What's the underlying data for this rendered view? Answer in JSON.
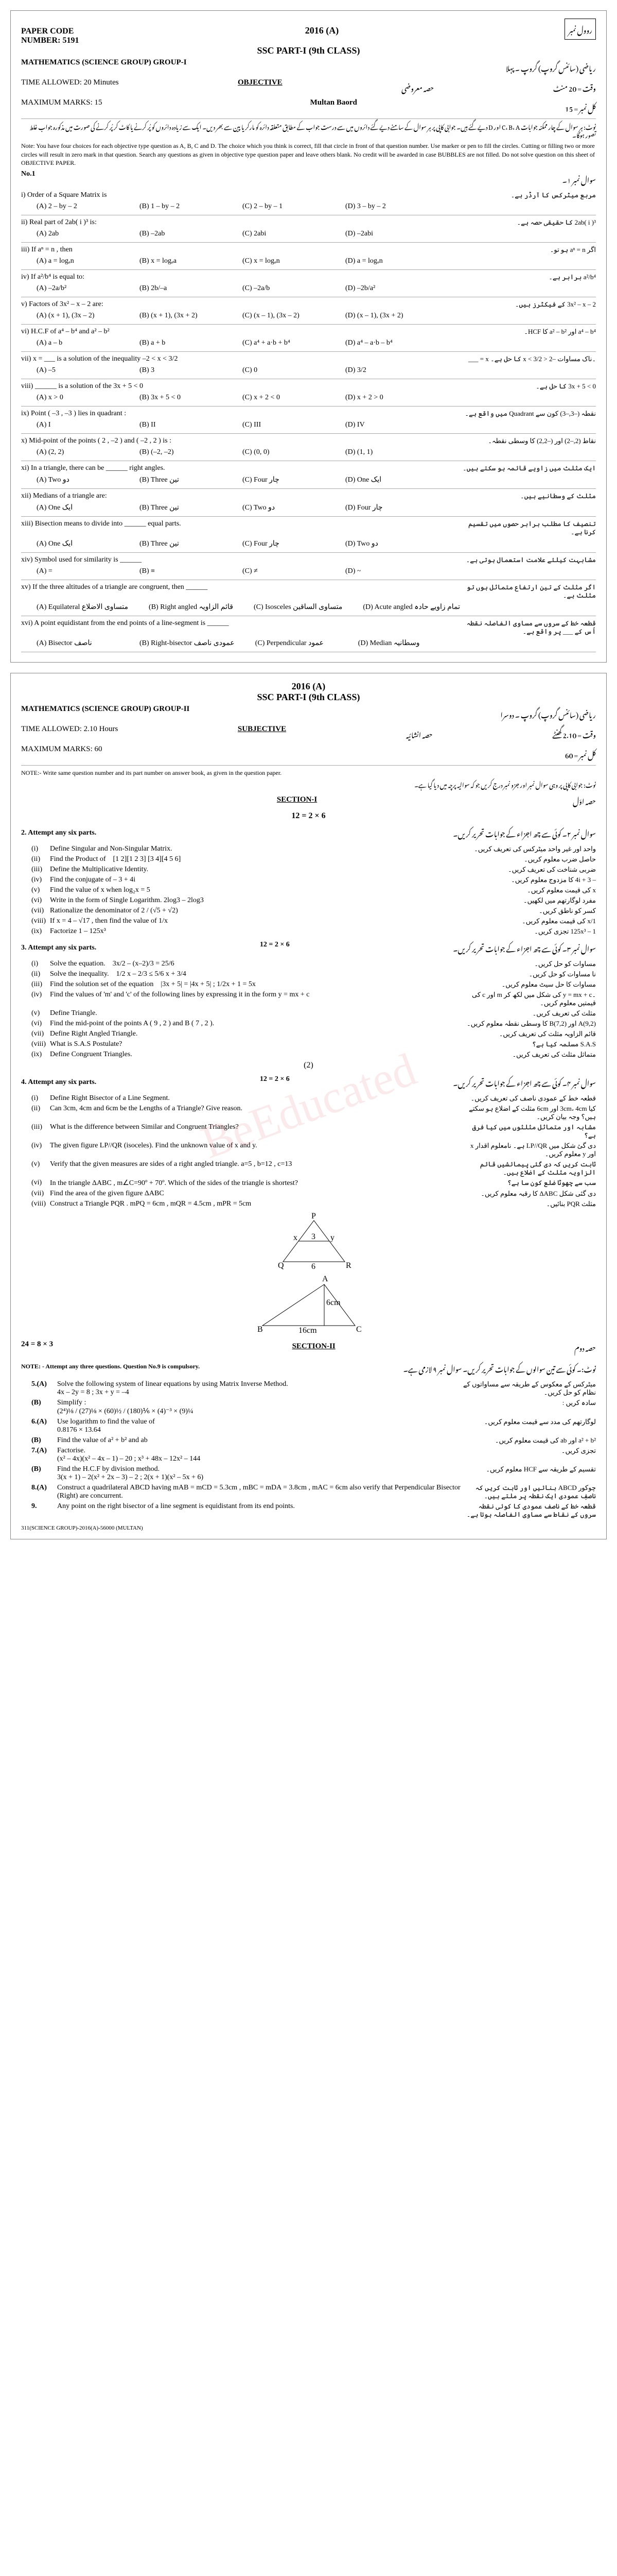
{
  "paper1": {
    "paperCode": "PAPER CODE",
    "number": "NUMBER: 5191",
    "year": "2016 (A)",
    "sscPart": "SSC PART-I (9th CLASS)",
    "rollLabel": "روول نمبر",
    "subject": "MATHEMATICS (SCIENCE GROUP)  GROUP-I",
    "urduSubject": "ریاضی (سائنس گروپ)   گروپ ۔ پہلا",
    "time": "TIME ALLOWED: 20 Minutes",
    "objLabel": "OBJECTIVE",
    "objUrdu": "حصہ معروضی",
    "maxMarks": "MAXIMUM MARKS: 15",
    "board": "Multan Baord",
    "marksUrdu": "کل نمبر = 15",
    "timeUrdu": "وقت = 20 منٹ",
    "note": "Note: You have four choices for each objective type question as A, B, C and D. The choice which you think is correct, fill that circle in front of that question number. Use marker or pen to fill the circles. Cutting or filling two or more circles will result in zero mark in that question. Search any questions as given in objective type question paper and leave others blank. No credit will be awarded in case BUBBLES are not filled. Do not solve question on this sheet of OBJECTIVE PAPER.",
    "noteUrdu": "نوٹ: ہر سوال کے چار ممکنہ جوابات C، B، A اور D دیے گئے ہیں۔ جوابی کاپی پر ہر سوال کے سامنے دیے گئے دائروں میں سے درست جواب کے مطابق متعلقہ دائرہ کو مارکر یا پین سے بھر دیں۔ ایک سے زیادہ دائروں کو پُر کرنے یا کاٹ کر پُر کرنے کی صورت میں مذکورہ جواب غلط تصور ہوگا۔",
    "q1Label": "No.1",
    "q1Urdu": "سوال نمبر ۱۔",
    "mcqs": [
      {
        "n": "i",
        "txt": "Order of a Square Matrix is",
        "ur": "مربع میٹرکس کا آرڈر ہے۔",
        "opts": [
          "(A)  2 – by – 2",
          "(B)  1 – by – 2",
          "(C)  2 – by – 1",
          "(D)  3 – by – 2"
        ]
      },
      {
        "n": "ii",
        "txt": "Real part of  2ab( i )³  is:",
        "ur": "2ab( i )³ کا حقیقی حصہ ہے۔",
        "opts": [
          "(A)  2ab",
          "(B)  –2ab",
          "(C)  2abi",
          "(D)  –2abi"
        ]
      },
      {
        "n": "iii",
        "txt": "If  aⁿ = n ,  then",
        "ur": "اگر aⁿ = n ہو تو۔",
        "opts": [
          "(A)  a = logₐn",
          "(B)  x = logₐa",
          "(C)  x = logₐn",
          "(D)  a = logₐn"
        ]
      },
      {
        "n": "iv",
        "txt": "If  a²/b⁴  is equal to:",
        "ur": "a²/b⁴ برابر ہے۔",
        "opts": [
          "(A)  –2a/b²",
          "(B)  2b/–a",
          "(C)  –2a/b",
          "(D)  –2b/a²"
        ]
      },
      {
        "n": "v",
        "txt": "Factors of  3x² – x – 2  are:",
        "ur": "3x² – x – 2 کے فیکٹرز ہیں۔",
        "opts": [
          "(A) (x + 1), (3x – 2)",
          "(B) (x + 1), (3x + 2)",
          "(C) (x – 1), (3x – 2)",
          "(D) (x – 1), (3x + 2)"
        ]
      },
      {
        "n": "vi",
        "txt": "H.C.F of  a⁴ – b⁴  and  a² – b²",
        "ur": "a⁴ – b⁴ اور a² – b² کا HCF۔",
        "opts": [
          "(A)  a – b",
          "(B)  a + b",
          "(C)  a⁴ + a·b + b⁴",
          "(D)  a⁴ – a·b – b⁴"
        ]
      },
      {
        "n": "vii",
        "txt": "x = ___ is a solution of the inequality   –2 < x < 3/2",
        "ur": "۔ناک مساوات –2 < x < 3/2 کا حل ہے۔ x = ___",
        "opts": [
          "(A)  –5",
          "(B)  3",
          "(C)  0",
          "(D)  3/2"
        ]
      },
      {
        "n": "viii",
        "txt": "______ is a solution of the  3x + 5 < 0",
        "ur": "3x + 5 < 0 کا حل ہے۔",
        "opts": [
          "(A)  x > 0",
          "(B)  3x + 5 < 0",
          "(C)  x + 2 < 0",
          "(D)  x + 2 > 0"
        ]
      },
      {
        "n": "ix",
        "txt": "Point ( –3 , –3 ) lies in quadrant :",
        "ur": "نقطہ (–3,–3) کون سے Quadrant میں واقع ہے۔",
        "opts": [
          "(A)  I",
          "(B)  II",
          "(C)  III",
          "(D)  IV"
        ]
      },
      {
        "n": "x",
        "txt": "Mid-point of the points ( 2 , –2 ) and ( –2 , 2 ) is :",
        "ur": "نقاط (2,–2) اور (–2,2) کا وسطی نقطہ۔",
        "opts": [
          "(A)  (2, 2)",
          "(B)  (–2, –2)",
          "(C)  (0, 0)",
          "(D)  (1, 1)"
        ]
      },
      {
        "n": "xi",
        "txt": "In a triangle, there can be ______ right angles.",
        "ur": "ایک مثلث میں زاویے قائمہ ہو سکتے ہیں۔",
        "opts": [
          "(A)  Two   دو",
          "(B)  Three  تین",
          "(C)  Four  چار",
          "(D)  One  ایک"
        ]
      },
      {
        "n": "xii",
        "txt": "Medians of a triangle are:",
        "ur": "مثلث کے وسطانیے ہیں۔",
        "opts": [
          "(A)  One  ایک",
          "(B)  Three  تین",
          "(C)  Two  دو",
          "(D)  Four  چار"
        ]
      },
      {
        "n": "xiii",
        "txt": "Bisection means to divide into ______ equal parts.",
        "ur": "تنصیف کا مطلب برابر حصوں میں تقسیم کرنا ہے۔",
        "opts": [
          "(A)  One  ایک",
          "(B)  Three  تین",
          "(C)  Four  چار",
          "(D)  Two  دو"
        ]
      },
      {
        "n": "xiv",
        "txt": "Symbol used for similarity is ______",
        "ur": "مشابہت کیلئے علامت استعمال ہوتی ہے۔",
        "opts": [
          "(A)  =",
          "(B)  ≡",
          "(C)  ≠",
          "(D)  ~"
        ]
      },
      {
        "n": "xv",
        "txt": "If the three altitudes of a triangle are congruent, then ______",
        "ur": "اگر مثلث کے تین ارتفاع متماثل ہوں تو مثلث ہے۔",
        "opts": [
          "(A) Equilateral متساوی الاضلاع",
          "(B) Right angled قائم الزاویہ",
          "(C) Isosceles متساوی الساقین",
          "(D) Acute angled تمام زاویے حادہ"
        ]
      },
      {
        "n": "xvi",
        "txt": "A point equidistant from the end points of a line-segment is ______",
        "ur": "قطعہ خط کے سروں سے مساوی الفاصلہ نقطہ اُس کے ___ پر واقع ہے۔",
        "opts": [
          "(A) Bisector  ناصف",
          "(B) Right-bisector عمودی ناصف",
          "(C) Perpendicular  عمود",
          "(D) Median  وسطانیہ"
        ]
      }
    ]
  },
  "paper2": {
    "year": "2016 (A)",
    "sscPart": "SSC PART-I (9th CLASS)",
    "subject": "MATHEMATICS (SCIENCE GROUP)  GROUP-II",
    "urduSubject": "ریاضی (سائنس گروپ)   گروپ ۔ دوسرا",
    "time": "TIME ALLOWED: 2.10  Hours",
    "subjLabel": "SUBJECTIVE",
    "subjUrdu": "حصہ انشائیہ",
    "maxMarks": "MAXIMUM MARKS: 60",
    "timeUrdu": "وقت = 2.10 گھنٹے",
    "marksUrdu": "کل نمبر = 60",
    "note": "NOTE:- Write same question number and its part number on answer book, as given in the question paper.",
    "noteUrdu": "نوٹ: جوابی کاپی پر وہی سوال نمبر اور جزو نمبر درج کریں جو کہ سوالیہ پرچہ میں دیا گیا ہے۔",
    "section1": "SECTION-I",
    "section1Urdu": "حصہ اوّل",
    "marksEq1": "12 = 2 × 6",
    "q2": "2.  Attempt any six parts.",
    "q2Urdu": "سوال نمبر ۲۔ کوئی سے چھ اجزاء کے جوابات تحریر کریں۔",
    "subs2": [
      {
        "l": "(i)",
        "t": "Define Singular and Non-Singular Matrix.",
        "u": "واحد اور غیر واحد میٹرکس کی تعریف کریں۔"
      },
      {
        "l": "(ii)",
        "t": "Find the Product of",
        "u": "حاصل ضرب معلوم کریں۔",
        "extra": "[1  2][1  2  3]\n[3  4][4  5  6]"
      },
      {
        "l": "(iii)",
        "t": "Define the Multiplicative Identity.",
        "u": "ضربی شناخت کی تعریف کریں۔"
      },
      {
        "l": "(iv)",
        "t": "Find the conjugate of   – 3 + 4i",
        "u": "– 3 + 4i کا مزدوج معلوم کریں۔"
      },
      {
        "l": "(v)",
        "t": "Find the value of  x  when log₂x = 5",
        "u": "x کی قیمت معلوم کریں۔"
      },
      {
        "l": "(vi)",
        "t": "Write in the form of Single Logarithm.        2log3 – 2log3",
        "u": "مفرد لوگارتھم میں لکھیں۔"
      },
      {
        "l": "(vii)",
        "t": "Rationalize the denominator of   2 / (√5 + √2)",
        "u": "کسر کو ناطق کریں۔"
      },
      {
        "l": "(viii)",
        "t": "If  x = 4 – √17 ,  then find the value of  1/x",
        "u": "1/x کی قیمت معلوم کریں۔"
      },
      {
        "l": "(ix)",
        "t": "Factorize   1 – 125x³",
        "u": "1 – 125x³  تجزی کریں۔"
      }
    ],
    "q3": "3.  Attempt any six parts.",
    "q3Urdu": "سوال نمبر ۳۔ کوئی سے چھ اجزاء کے جوابات تحریر کریں۔",
    "marksEq3": "12 = 2 × 6",
    "subs3": [
      {
        "l": "(i)",
        "t": "Solve the equation.",
        "u": "مساوات کو حل کریں۔",
        "extra": "3x/2 – (x–2)/3 = 25/6"
      },
      {
        "l": "(ii)",
        "t": "Solve the inequality.",
        "u": "نا مساوات کو حل کریں۔",
        "extra": "1/2 x – 2/3 ≤ 5/6 x + 3/4"
      },
      {
        "l": "(iii)",
        "t": "Find the solution set of the equation",
        "u": "مساوات کا حل سیٹ معلوم کریں۔",
        "extra": "|3x + 5| = |4x + 5|   ;   1/2x + 1 = 5x"
      },
      {
        "l": "(iv)",
        "t": "Find the values of 'm' and 'c' of the following lines by expressing it in the form  y = mx + c",
        "u": "۔y = mx + c کی شکل میں لکھ کر m اور c کی قیمتیں معلوم کریں۔"
      },
      {
        "l": "(v)",
        "t": "Define Triangle.",
        "u": "مثلث کی تعریف کریں۔"
      },
      {
        "l": "(vi)",
        "t": "Find the mid-point of the points  A ( 9 , 2 )  and  B ( 7 , 2 ).",
        "u": "A(9,2) اور B(7,2) کا وسطی نقطہ معلوم کریں۔"
      },
      {
        "l": "(vii)",
        "t": "Define Right Angled Triangle.",
        "u": "قائم الزاویہ مثلث کی تعریف کریں۔"
      },
      {
        "l": "(viii)",
        "t": "What is S.A.S Postulate?",
        "u": "S.A.S مسلمہ کیا ہے؟"
      },
      {
        "l": "(ix)",
        "t": "Define Congruent Triangles.",
        "u": "متماثل مثلث کی تعریف کریں۔"
      }
    ],
    "q4page": "(2)",
    "q4": "4.  Attempt any six parts.",
    "q4Urdu": "سوال نمبر ۴۔ کوئی سے چھ اجزاء کے جوابات تحریر کریں۔",
    "marksEq4": "12 = 2 × 6",
    "subs4": [
      {
        "l": "(i)",
        "t": "Define Right Bisector of a Line Segment.",
        "u": "قطعہ خط کے عمودی ناصف کی تعریف کریں۔"
      },
      {
        "l": "(ii)",
        "t": "Can 3cm, 4cm and 6cm be the Lengths of a Triangle? Give reason.",
        "u": "کیا 3cm، 4cm اور 6cm مثلث کے اضلاع ہو سکتے ہیں؟ وجہ بیان کریں۔"
      },
      {
        "l": "(iii)",
        "t": "What is the difference between Similar and Congruent Triangles?",
        "u": "مشابہ اور متماثل مثلثوں میں کیا فرق ہے؟"
      },
      {
        "l": "(iv)",
        "t": "The given figure  LP//QR  (isoceles). Find the unknown value of  x  and  y.",
        "u": "دی گئ شکل میں LP//QR ہے۔ نامعلوم اقدار x اور y معلوم کریں۔"
      },
      {
        "l": "(v)",
        "t": "Verify that the given measures are sides of a right angled triangle.    a=5 ,  b=12 ,  c=13",
        "u": "ثابت کریں کہ دی گئی پیمائشیں قائم الزاویہ مثلث کے اضلاع ہیں۔"
      },
      {
        "l": "(vi)",
        "t": "In the triangle  ΔABC ,  m∠C=90º + 70º. Which of the sides of the triangle is shortest?",
        "u": "سب سے چھوٹا ضلع کون سا ہے؟"
      },
      {
        "l": "(vii)",
        "t": "Find the area of the given figure  ΔABC",
        "u": "دی گئی شکل ΔABC کا رقبہ معلوم کریں۔"
      },
      {
        "l": "(viii)",
        "t": "Construct a Triangle  PQR .    mPQ = 6cm ,  mQR = 4.5cm ,  mPR = 5cm",
        "u": "مثلث PQR بنائیں۔"
      }
    ],
    "tri1": {
      "P": "P",
      "Q": "Q",
      "R": "R",
      "x": "x",
      "y": "y",
      "s3": "3",
      "s6": "6"
    },
    "tri2": {
      "A": "A",
      "B": "B",
      "C": "C",
      "h": "6cm",
      "b": "16cm"
    },
    "section2": "SECTION-II",
    "section2Urdu": "حصہ دوم",
    "marksEq2": "24 = 8 × 3",
    "noteS2": "NOTE: - Attempt any three questions.  Question No.9 is compulsory.",
    "noteS2Urdu": "نوٹ:۔ کوئی سے تین سوالوں کے جوابات تحریر کریں۔ سوال نمبر ۹ لازمی ہے۔",
    "longQ": [
      {
        "n": "5.(A)",
        "t": "Solve the following system of linear equations by using Matrix Inverse Method.",
        "u": "میٹرکس کے معکوس کے طریقہ سے مساواتوں کے نظام کو حل کریں۔",
        "extra": "4x – 2y = 8 ;  3x + y = –4"
      },
      {
        "n": "(B)",
        "t": "Simplify :",
        "u": "سادہ کریں :",
        "extra": "(2⁴)⅛ / (27)⅛ × (60)½ / (180)⅙ × (4)⁻³ × (9)¼"
      },
      {
        "n": "6.(A)",
        "t": "Use logarithm to find the value of",
        "u": "لوگارتھم کی مدد سے قیمت معلوم کریں۔",
        "extra": "0.8176 × 13.64"
      },
      {
        "n": "(B)",
        "t": "Find the value of   a² + b²   and  ab",
        "u": "a² + b² اور ab کی قیمت معلوم کریں۔"
      },
      {
        "n": "7.(A)",
        "t": "Factorise.",
        "u": "تجزی کریں۔",
        "extra": "(x² – 4x)(x² – 4x – 1) – 20 ;  x³ + 48x – 12x² – 144"
      },
      {
        "n": "(B)",
        "t": "Find the H.C.F by division method.",
        "u": "تقسیم کے طریقہ سے HCF معلوم کریں۔",
        "extra": "3(x + 1) – 2(x² + 2x – 3) – 2 ;  2(x + 1)(x² – 5x + 6)"
      },
      {
        "n": "8.(A)",
        "t": "Construct a quadrilateral  ABCD  having    mAB = mCD = 5.3cm ,  mBC = mDA = 3.8cm ,  mAC = 6cm  also verify that Perpendicular Bisector (Right) are concurrent.",
        "u": "چوکور ABCD بنائیں اور ثابت کریں کہ ناصفِ عمودی ایک نقطہ پر ملتے ہیں۔"
      },
      {
        "n": "9.",
        "t": "Any point on the right bisector of a line segment is equidistant from its end points.",
        "u": "قطعہ خط کے ناصف عمودی کا کوئی نقطہ سروں کے نقاط سے مساوی الفاصلہ ہوتا ہے۔"
      }
    ],
    "footerL": "311(SCIENCE GROUP)-2016(A)-56000  (MULTAN)",
    "watermark": "BeEducated"
  }
}
